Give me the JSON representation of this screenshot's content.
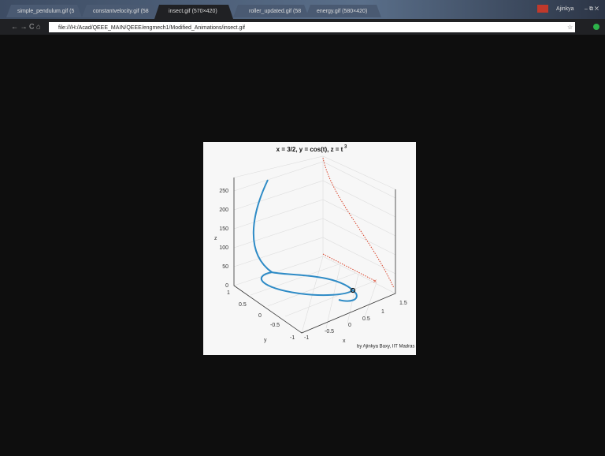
{
  "browser": {
    "tabs": [
      "simple_pendulum.gif (5",
      "constantvelocity.gif (58",
      "insect.gif (570×420)",
      "roller_updated.gif (58",
      "energy.gif (580×420)"
    ],
    "user": "Ajinkya",
    "url": "file:///H:/Acad/QEEE_MAIN/QEEE/engmech1/Modified_Animations/insect.gif"
  },
  "plot": {
    "title": {
      "text": "x = 3/2, y = cos(t), z = t",
      "superscript": "3"
    },
    "z_label": "z",
    "y_label": "y",
    "x_label": "x",
    "z_ticks": [
      "0",
      "50",
      "100",
      "150",
      "200",
      "250"
    ],
    "y_ticks": [
      "1",
      "0.5",
      "0",
      "-0.5",
      "-1"
    ],
    "x_ticks": [
      "-1",
      "-0.5",
      "0",
      "0.5",
      "1",
      "1.5"
    ],
    "credit": "by Ajinkya Baxy, IIT Madras"
  }
}
